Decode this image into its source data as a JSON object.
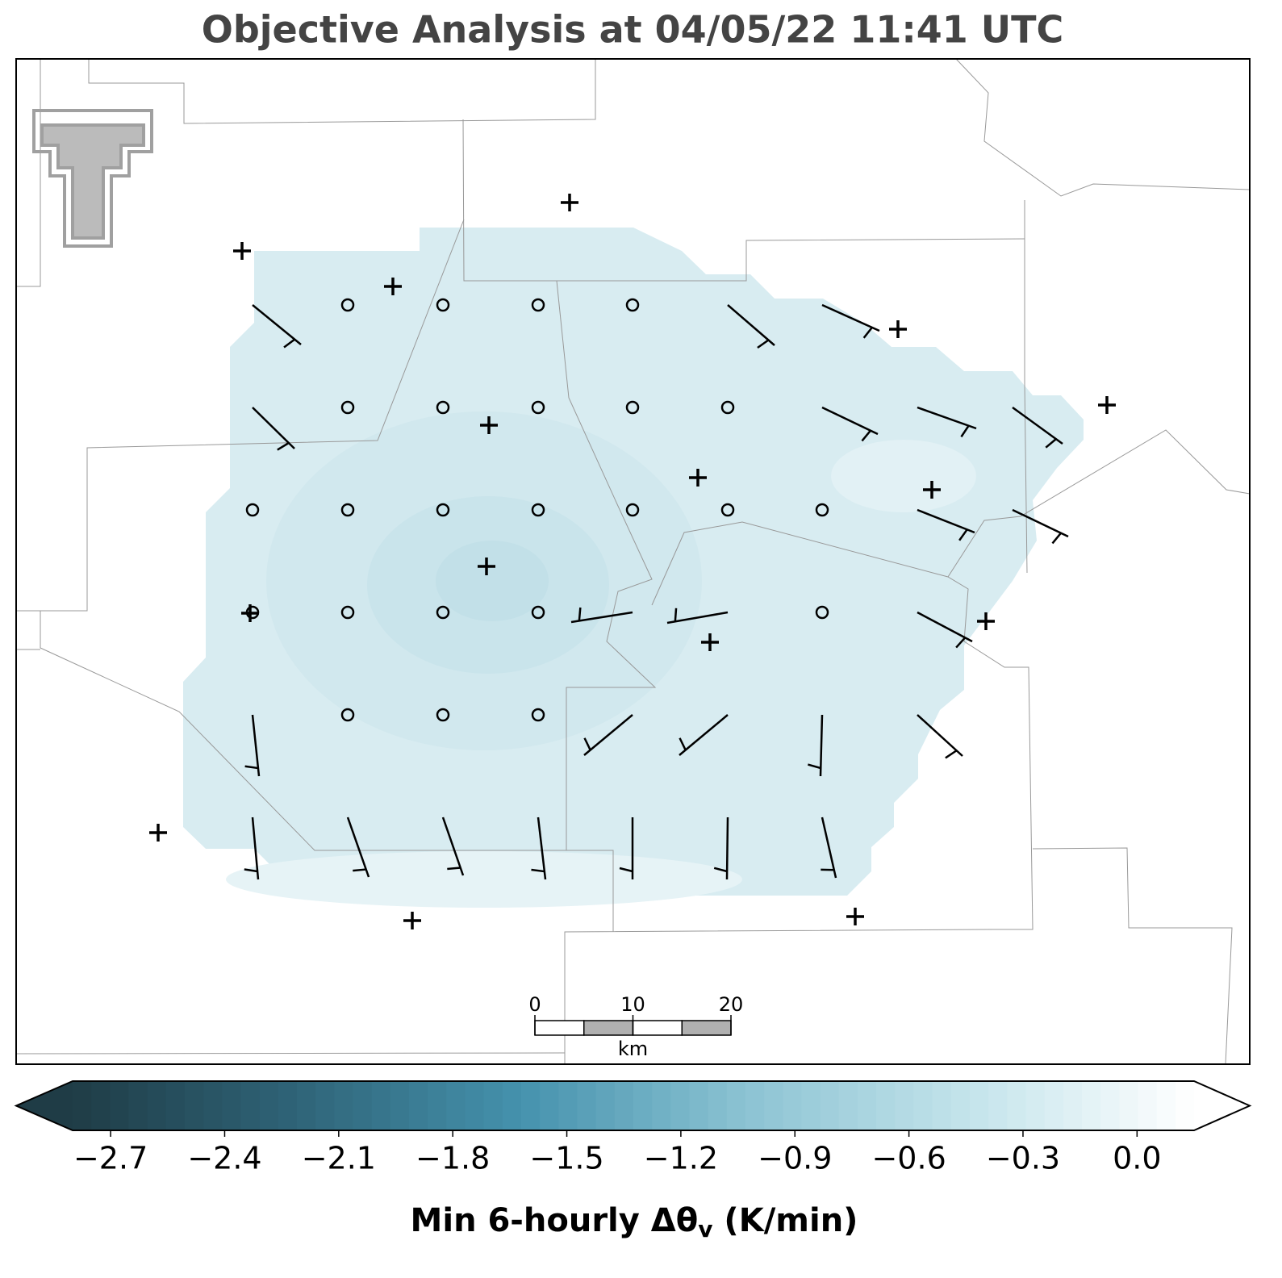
{
  "title": "Objective Analysis at 04/05/22 11:41 UTC",
  "colorbar": {
    "lim": [
      -2.8,
      0.15
    ],
    "colors": [
      "#1f3c46",
      "#2f6478",
      "#4592ad",
      "#8cc3d3",
      "#c4e4eb",
      "#ffffff"
    ],
    "ticks": [
      {
        "value": -2.7,
        "label": "−2.7"
      },
      {
        "value": -2.4,
        "label": "−2.4"
      },
      {
        "value": -2.1,
        "label": "−2.1"
      },
      {
        "value": -1.8,
        "label": "−1.8"
      },
      {
        "value": -1.5,
        "label": "−1.5"
      },
      {
        "value": -1.2,
        "label": "−1.2"
      },
      {
        "value": -0.9,
        "label": "−0.9"
      },
      {
        "value": -0.6,
        "label": "−0.6"
      },
      {
        "value": -0.3,
        "label": "−0.3"
      },
      {
        "value": 0,
        "label": "0.0"
      }
    ],
    "label": {
      "main": "Min 6-hourly Δθ",
      "sub": "v",
      "tail": " (K/min)"
    }
  },
  "scalebar": {
    "ticks": [
      0,
      10,
      20
    ],
    "unit": "km"
  }
}
